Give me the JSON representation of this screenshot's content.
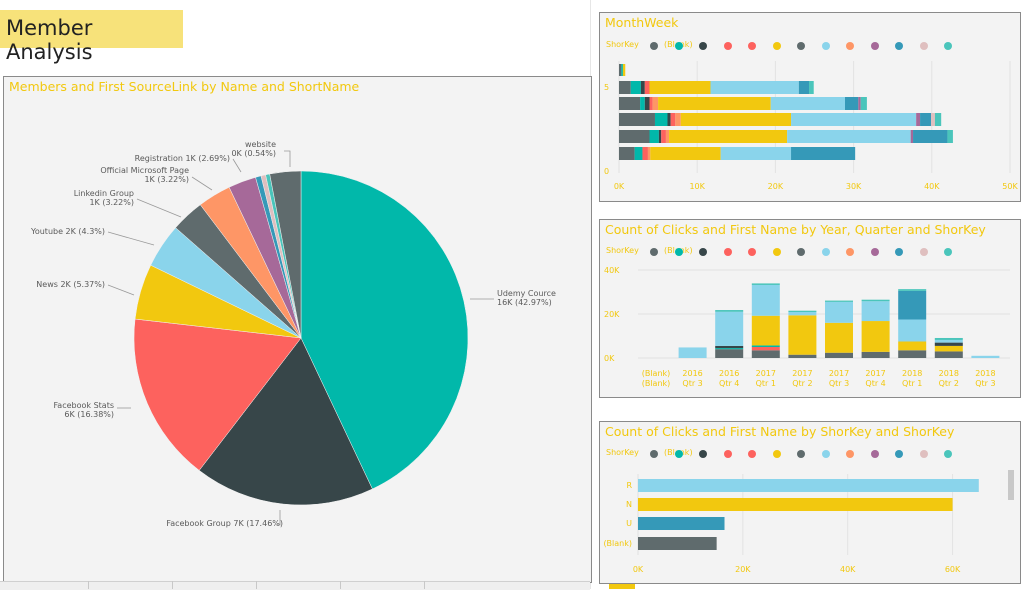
{
  "page": {
    "title": "Member Analysis"
  },
  "pie": {
    "title": "Members and First SourceLink by Name and ShortName",
    "slices": [
      {
        "label": "Udemy Cource",
        "value_label": "16K (42.97%)",
        "pct": 42.97,
        "color": "#01b8aa"
      },
      {
        "label": "Facebook Group 7K (17.46%)",
        "value_label": "",
        "pct": 17.46,
        "color": "#374649"
      },
      {
        "label": "Facebook Stats",
        "value_label": "6K (16.38%)",
        "pct": 16.38,
        "color": "#fd625e"
      },
      {
        "label": "News 2K (5.37%)",
        "value_label": "",
        "pct": 5.37,
        "color": "#f2c80f"
      },
      {
        "label": "Youtube 2K (4.3%)",
        "value_label": "",
        "pct": 4.3,
        "color": "#8ad4eb"
      },
      {
        "label": "Linkedin Group",
        "value_label": "1K (3.22%)",
        "pct": 3.22,
        "color": "#5f6b6d"
      },
      {
        "label": "Official Microsoft Page",
        "value_label": "1K (3.22%)",
        "pct": 3.22,
        "color": "#fe9666"
      },
      {
        "label": "Registration 1K (2.69%)",
        "value_label": "",
        "pct": 2.69,
        "color": "#a66999"
      },
      {
        "label": "website",
        "value_label": "0K (0.54%)",
        "pct": 0.54,
        "color": "#3599b8"
      },
      {
        "label": "",
        "value_label": "",
        "pct": 0.45,
        "color": "#dfbfbf"
      },
      {
        "label": "",
        "value_label": "",
        "pct": 0.4,
        "color": "#4ac5bb"
      },
      {
        "label": "",
        "value_label": "",
        "pct": 3.0,
        "color": "#5f6b6d"
      }
    ]
  },
  "legend_colors": [
    "#5f6b6d",
    "#01b8aa",
    "#374649",
    "#fd625e",
    "#fd625e",
    "#f2c80f",
    "#5f6b6d",
    "#8ad4eb",
    "#fe9666",
    "#a66999",
    "#3599b8",
    "#dfbfbf",
    "#4ac5bb"
  ],
  "legend_label_a": "ShorKey",
  "legend_label_b": "(Blank)",
  "monthweek": {
    "title": "MonthWeek",
    "y_tick_top": "5",
    "y_tick_bottom": "0",
    "x_ticks": [
      "0K",
      "10K",
      "20K",
      "30K",
      "40K",
      "50K"
    ],
    "xmax": 50000,
    "rows": [
      [
        [
          "#5f6b6d",
          300
        ],
        [
          "#01b8aa",
          200
        ],
        [
          "#f2c80f",
          300
        ]
      ],
      [
        [
          "#5f6b6d",
          1500
        ],
        [
          "#01b8aa",
          1300
        ],
        [
          "#374649",
          500
        ],
        [
          "#fd625e",
          600
        ],
        [
          "#f2c80f",
          7800
        ],
        [
          "#8ad4eb",
          11300
        ],
        [
          "#3599b8",
          1300
        ],
        [
          "#4ac5bb",
          600
        ]
      ],
      [
        [
          "#5f6b6d",
          2700
        ],
        [
          "#01b8aa",
          600
        ],
        [
          "#374649",
          600
        ],
        [
          "#fd625e",
          400
        ],
        [
          "#fe9666",
          700
        ],
        [
          "#f2c80f",
          14400
        ],
        [
          "#8ad4eb",
          9500
        ],
        [
          "#3599b8",
          1700
        ],
        [
          "#a66999",
          300
        ],
        [
          "#4ac5bb",
          800
        ]
      ],
      [
        [
          "#5f6b6d",
          4600
        ],
        [
          "#01b8aa",
          1600
        ],
        [
          "#374649",
          400
        ],
        [
          "#fd625e",
          600
        ],
        [
          "#fe9666",
          700
        ],
        [
          "#f2c80f",
          14100
        ],
        [
          "#8ad4eb",
          16000
        ],
        [
          "#a66999",
          500
        ],
        [
          "#3599b8",
          1400
        ],
        [
          "#dfbfbf",
          500
        ],
        [
          "#4ac5bb",
          800
        ]
      ],
      [
        [
          "#5f6b6d",
          3900
        ],
        [
          "#01b8aa",
          1200
        ],
        [
          "#374649",
          300
        ],
        [
          "#fd625e",
          600
        ],
        [
          "#fe9666",
          400
        ],
        [
          "#f2c80f",
          15100
        ],
        [
          "#8ad4eb",
          15800
        ],
        [
          "#a66999",
          300
        ],
        [
          "#3599b8",
          4400
        ],
        [
          "#4ac5bb",
          700
        ]
      ],
      [
        [
          "#5f6b6d",
          2000
        ],
        [
          "#01b8aa",
          1000
        ],
        [
          "#fd625e",
          700
        ],
        [
          "#fe9666",
          300
        ],
        [
          "#f2c80f",
          9000
        ],
        [
          "#8ad4eb",
          9000
        ],
        [
          "#3599b8",
          8200
        ]
      ]
    ]
  },
  "clicks_year": {
    "title": "Count of Clicks and First Name by Year, Quarter and ShorKey",
    "y_ticks": [
      "40K",
      "20K",
      "0K"
    ],
    "ymax": 40000,
    "categories": [
      [
        "(Blank)",
        "(Blank)"
      ],
      [
        "2016",
        "Qtr 3"
      ],
      [
        "2016",
        "Qtr 4"
      ],
      [
        "2017",
        "Qtr 1"
      ],
      [
        "2017",
        "Qtr 2"
      ],
      [
        "2017",
        "Qtr 3"
      ],
      [
        "2017",
        "Qtr 4"
      ],
      [
        "2018",
        "Qtr 1"
      ],
      [
        "2018",
        "Qtr 2"
      ],
      [
        "2018",
        "Qtr 3"
      ]
    ],
    "stacks": [
      [],
      [
        [
          "#8ad4eb",
          4800
        ]
      ],
      [
        [
          "#5f6b6d",
          4000
        ],
        [
          "#01b8aa",
          500
        ],
        [
          "#374649",
          1000
        ],
        [
          "#8ad4eb",
          15500
        ],
        [
          "#4ac5bb",
          800
        ]
      ],
      [
        [
          "#5f6b6d",
          3500
        ],
        [
          "#fd625e",
          1500
        ],
        [
          "#01b8aa",
          700
        ],
        [
          "#f2c80f",
          13500
        ],
        [
          "#8ad4eb",
          14000
        ],
        [
          "#4ac5bb",
          700
        ]
      ],
      [
        [
          "#5f6b6d",
          1500
        ],
        [
          "#f2c80f",
          17900
        ],
        [
          "#8ad4eb",
          1500
        ],
        [
          "#4ac5bb",
          600
        ]
      ],
      [
        [
          "#5f6b6d",
          2400
        ],
        [
          "#f2c80f",
          13600
        ],
        [
          "#8ad4eb",
          9500
        ],
        [
          "#4ac5bb",
          600
        ]
      ],
      [
        [
          "#5f6b6d",
          2800
        ],
        [
          "#f2c80f",
          14000
        ],
        [
          "#8ad4eb",
          9000
        ],
        [
          "#4ac5bb",
          700
        ]
      ],
      [
        [
          "#5f6b6d",
          3500
        ],
        [
          "#f2c80f",
          4000
        ],
        [
          "#8ad4eb",
          10000
        ],
        [
          "#3599b8",
          13000
        ],
        [
          "#4ac5bb",
          800
        ]
      ],
      [
        [
          "#5f6b6d",
          3000
        ],
        [
          "#f2c80f",
          2500
        ],
        [
          "#374649",
          1500
        ],
        [
          "#8ad4eb",
          1200
        ],
        [
          "#4ac5bb",
          900
        ]
      ],
      [
        [
          "#8ad4eb",
          1000
        ]
      ]
    ]
  },
  "clicks_key": {
    "title": "Count of Clicks and First Name by ShorKey and ShorKey",
    "categories": [
      "R",
      "N",
      "U",
      "(Blank)"
    ],
    "values": [
      65000,
      60000,
      16500,
      15000
    ],
    "colors": [
      "#8ad4eb",
      "#f2c80f",
      "#3599b8",
      "#5f6b6d"
    ],
    "x_ticks": [
      "0K",
      "20K",
      "40K",
      "60K"
    ],
    "xmax": 70000
  }
}
